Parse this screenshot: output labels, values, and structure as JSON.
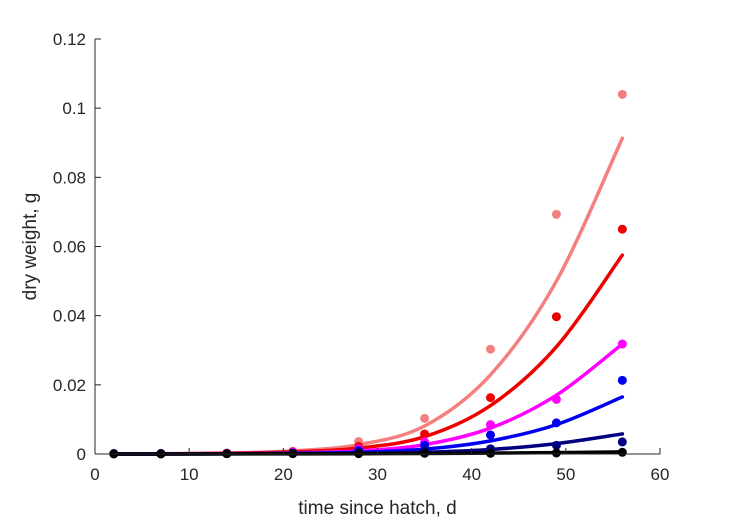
{
  "chart_data": {
    "type": "scatter",
    "title": "",
    "xlabel": "time since hatch, d",
    "ylabel": "dry weight, g",
    "xlim": [
      0,
      60
    ],
    "ylim": [
      0,
      0.12
    ],
    "xticks": [
      0,
      10,
      20,
      30,
      40,
      50,
      60
    ],
    "yticks": [
      0,
      0.02,
      0.04,
      0.06,
      0.08,
      0.1,
      0.12
    ],
    "xtick_labels": [
      "0",
      "10",
      "20",
      "30",
      "40",
      "50",
      "60"
    ],
    "ytick_labels": [
      "0",
      "0.02",
      "0.04",
      "0.06",
      "0.08",
      "0.1",
      "0.12"
    ],
    "grid": false,
    "legend": "none",
    "series": [
      {
        "color": "#f47f7f",
        "points": {
          "x": [
            2,
            7,
            14,
            21,
            28,
            35,
            42,
            49,
            56
          ],
          "y": [
            0.0001,
            0.0002,
            0.0003,
            0.0008,
            0.0036,
            0.0103,
            0.0303,
            0.0693,
            0.104
          ]
        },
        "fit": {
          "x": [
            2,
            7,
            14,
            21,
            28,
            35,
            42,
            49,
            56
          ],
          "y": [
            2e-05,
            8e-05,
            0.0003,
            0.0009,
            0.0027,
            0.0081,
            0.0229,
            0.05,
            0.0913
          ]
        }
      },
      {
        "color": "#ee0000",
        "points": {
          "x": [
            2,
            7,
            14,
            21,
            28,
            35,
            42,
            49,
            56
          ],
          "y": [
            0.0001,
            0.0001,
            0.0002,
            0.0006,
            0.0022,
            0.0058,
            0.0163,
            0.0397,
            0.065
          ]
        },
        "fit": {
          "x": [
            2,
            7,
            14,
            21,
            28,
            35,
            42,
            49,
            56
          ],
          "y": [
            1e-05,
            5e-05,
            0.0002,
            0.0006,
            0.0017,
            0.005,
            0.014,
            0.031,
            0.0575
          ]
        }
      },
      {
        "color": "#ff00ff",
        "points": {
          "x": [
            2,
            7,
            14,
            21,
            28,
            35,
            42,
            49,
            56
          ],
          "y": [
            0.0001,
            0.0001,
            0.0002,
            0.0005,
            0.0015,
            0.0035,
            0.0085,
            0.0158,
            0.0318
          ]
        },
        "fit": {
          "x": [
            2,
            7,
            14,
            21,
            28,
            35,
            42,
            49,
            56
          ],
          "y": [
            1e-05,
            3e-05,
            0.0001,
            0.0003,
            0.0009,
            0.0027,
            0.0075,
            0.017,
            0.0318
          ]
        }
      },
      {
        "color": "#0000ee",
        "points": {
          "x": [
            2,
            7,
            14,
            21,
            28,
            35,
            42,
            49,
            56
          ],
          "y": [
            0.0001,
            0.0001,
            0.0001,
            0.0003,
            0.001,
            0.0025,
            0.0055,
            0.009,
            0.0213
          ]
        },
        "fit": {
          "x": [
            2,
            7,
            14,
            21,
            28,
            35,
            42,
            49,
            56
          ],
          "y": [
            1e-05,
            2e-05,
            7e-05,
            0.0002,
            0.0005,
            0.0014,
            0.0038,
            0.0085,
            0.0165
          ]
        }
      },
      {
        "color": "#000080",
        "points": {
          "x": [
            2,
            7,
            14,
            21,
            28,
            35,
            42,
            49,
            56
          ],
          "y": [
            0.0001,
            0.0001,
            0.0001,
            0.0002,
            0.0005,
            0.0009,
            0.0015,
            0.0025,
            0.0035
          ]
        },
        "fit": {
          "x": [
            2,
            7,
            14,
            21,
            28,
            35,
            42,
            49,
            56
          ],
          "y": [
            1e-05,
            1e-05,
            3e-05,
            0.0001,
            0.0002,
            0.0005,
            0.0013,
            0.003,
            0.0058
          ]
        }
      },
      {
        "color": "#000000",
        "points": {
          "x": [
            2,
            7,
            14,
            21,
            28,
            35,
            42,
            49,
            56
          ],
          "y": [
            0.0,
            0.0,
            0.0001,
            0.0001,
            0.0001,
            0.0002,
            0.0002,
            0.0003,
            0.0005
          ]
        },
        "fit": {
          "x": [
            2,
            7,
            14,
            21,
            28,
            35,
            42,
            49,
            56
          ],
          "y": [
            0.0,
            0.0,
            2e-05,
            4e-05,
            8e-05,
            0.00014,
            0.00025,
            0.0004,
            0.0006
          ]
        }
      }
    ]
  }
}
